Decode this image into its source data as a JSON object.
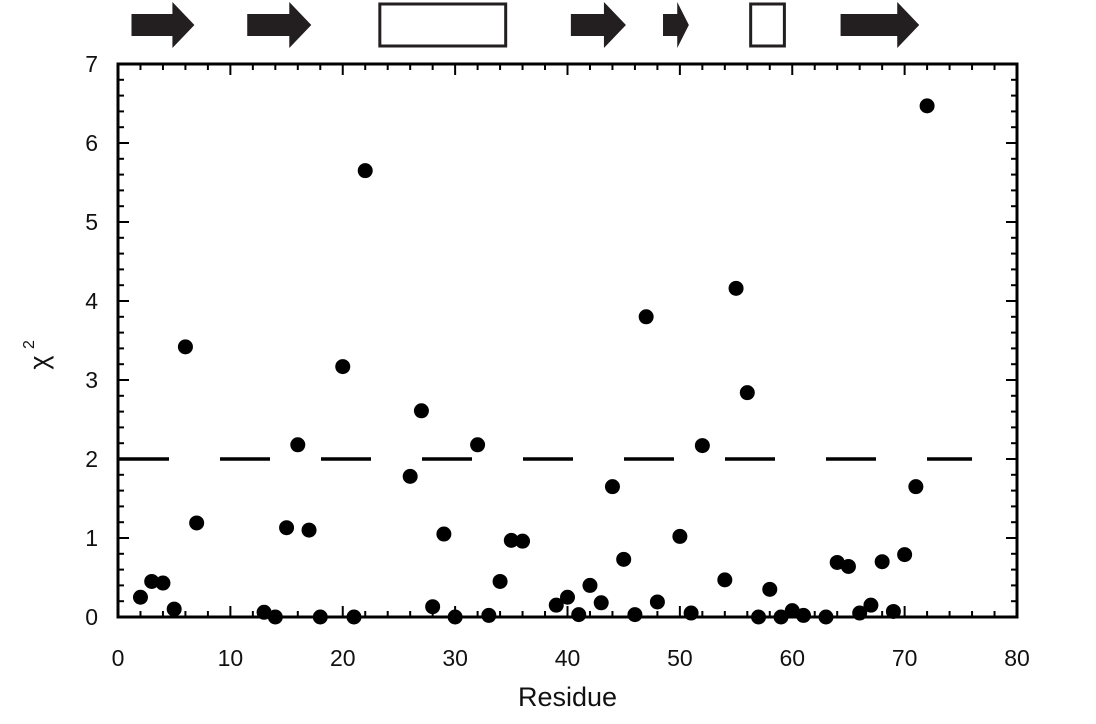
{
  "chart_data": {
    "type": "scatter",
    "title": "",
    "xlabel": "Residue",
    "ylabel": "χ",
    "ylabel_superscript": "2",
    "xlim": [
      0,
      80
    ],
    "ylim": [
      0,
      7
    ],
    "xticks": [
      0,
      10,
      20,
      30,
      40,
      50,
      60,
      70,
      80
    ],
    "yticks": [
      0,
      1,
      2,
      3,
      4,
      5,
      6,
      7
    ],
    "grid": false,
    "legend": "none",
    "marker_color": "#000000",
    "threshold_line": {
      "y": 2,
      "style": "dashed",
      "x_range": [
        0,
        76
      ]
    },
    "secondary_structure": [
      {
        "type": "strand",
        "start": 1.2,
        "end": 6.8
      },
      {
        "type": "strand",
        "start": 11.5,
        "end": 17.2
      },
      {
        "type": "helix",
        "start": 23.3,
        "end": 34.5
      },
      {
        "type": "strand",
        "start": 40.3,
        "end": 45.2
      },
      {
        "type": "strand",
        "start": 48.5,
        "end": 50.8
      },
      {
        "type": "helix",
        "start": 56.3,
        "end": 59.3
      },
      {
        "type": "strand",
        "start": 64.3,
        "end": 71.3
      }
    ],
    "series": [
      {
        "points": [
          [
            2,
            0.25
          ],
          [
            3,
            0.45
          ],
          [
            4,
            0.43
          ],
          [
            5,
            0.1
          ],
          [
            6,
            3.42
          ],
          [
            7,
            1.19
          ],
          [
            13,
            0.06
          ],
          [
            14,
            0.0
          ],
          [
            15,
            1.13
          ],
          [
            16,
            2.18
          ],
          [
            17,
            1.1
          ],
          [
            18,
            0.0
          ],
          [
            20,
            3.17
          ],
          [
            21,
            0.0
          ],
          [
            22,
            5.65
          ],
          [
            26,
            1.78
          ],
          [
            27,
            2.61
          ],
          [
            28,
            0.13
          ],
          [
            29,
            1.05
          ],
          [
            30,
            0.0
          ],
          [
            32,
            2.18
          ],
          [
            33,
            0.02
          ],
          [
            34,
            0.45
          ],
          [
            35,
            0.97
          ],
          [
            36,
            0.96
          ],
          [
            39,
            0.15
          ],
          [
            40,
            0.25
          ],
          [
            41,
            0.03
          ],
          [
            42,
            0.4
          ],
          [
            43,
            0.18
          ],
          [
            44,
            1.65
          ],
          [
            45,
            0.73
          ],
          [
            46,
            0.03
          ],
          [
            47,
            3.8
          ],
          [
            48,
            0.19
          ],
          [
            50,
            1.02
          ],
          [
            51,
            0.05
          ],
          [
            52,
            2.17
          ],
          [
            54,
            0.47
          ],
          [
            55,
            4.16
          ],
          [
            56,
            2.84
          ],
          [
            57,
            0.0
          ],
          [
            58,
            0.35
          ],
          [
            59,
            0.0
          ],
          [
            60,
            0.08
          ],
          [
            61,
            0.02
          ],
          [
            63,
            0.0
          ],
          [
            64,
            0.69
          ],
          [
            65,
            0.64
          ],
          [
            66,
            0.05
          ],
          [
            67,
            0.15
          ],
          [
            68,
            0.7
          ],
          [
            69,
            0.07
          ],
          [
            70,
            0.79
          ],
          [
            71,
            1.65
          ],
          [
            72,
            6.47
          ]
        ]
      }
    ]
  }
}
